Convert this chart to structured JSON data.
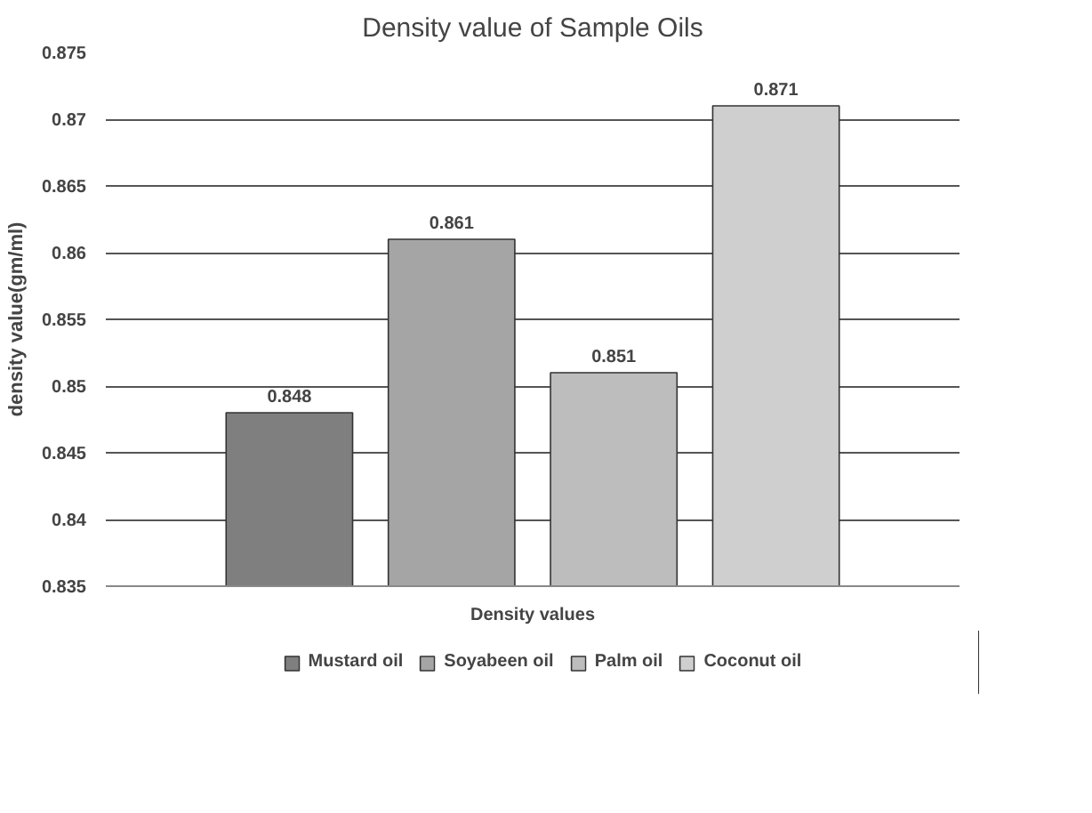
{
  "chart_data": {
    "type": "bar",
    "title": "Density value of Sample Oils",
    "ylabel": "density value(gm/ml)",
    "categories": [
      "Density values"
    ],
    "series": [
      {
        "name": "Mustard oil",
        "color": "#7f7f7f",
        "values": [
          0.848
        ]
      },
      {
        "name": "Soyabeen oil",
        "color": "#a5a5a5",
        "values": [
          0.861
        ]
      },
      {
        "name": "Palm oil",
        "color": "#bdbdbd",
        "values": [
          0.851
        ]
      },
      {
        "name": "Coconut oil",
        "color": "#cfcfcf",
        "values": [
          0.871
        ]
      }
    ],
    "ylim": [
      0.835,
      0.875
    ],
    "yticks": [
      0.835,
      0.84,
      0.845,
      0.85,
      0.855,
      0.86,
      0.865,
      0.87,
      0.875
    ],
    "grid": "y",
    "legend": "bottom",
    "data_labels": true
  }
}
